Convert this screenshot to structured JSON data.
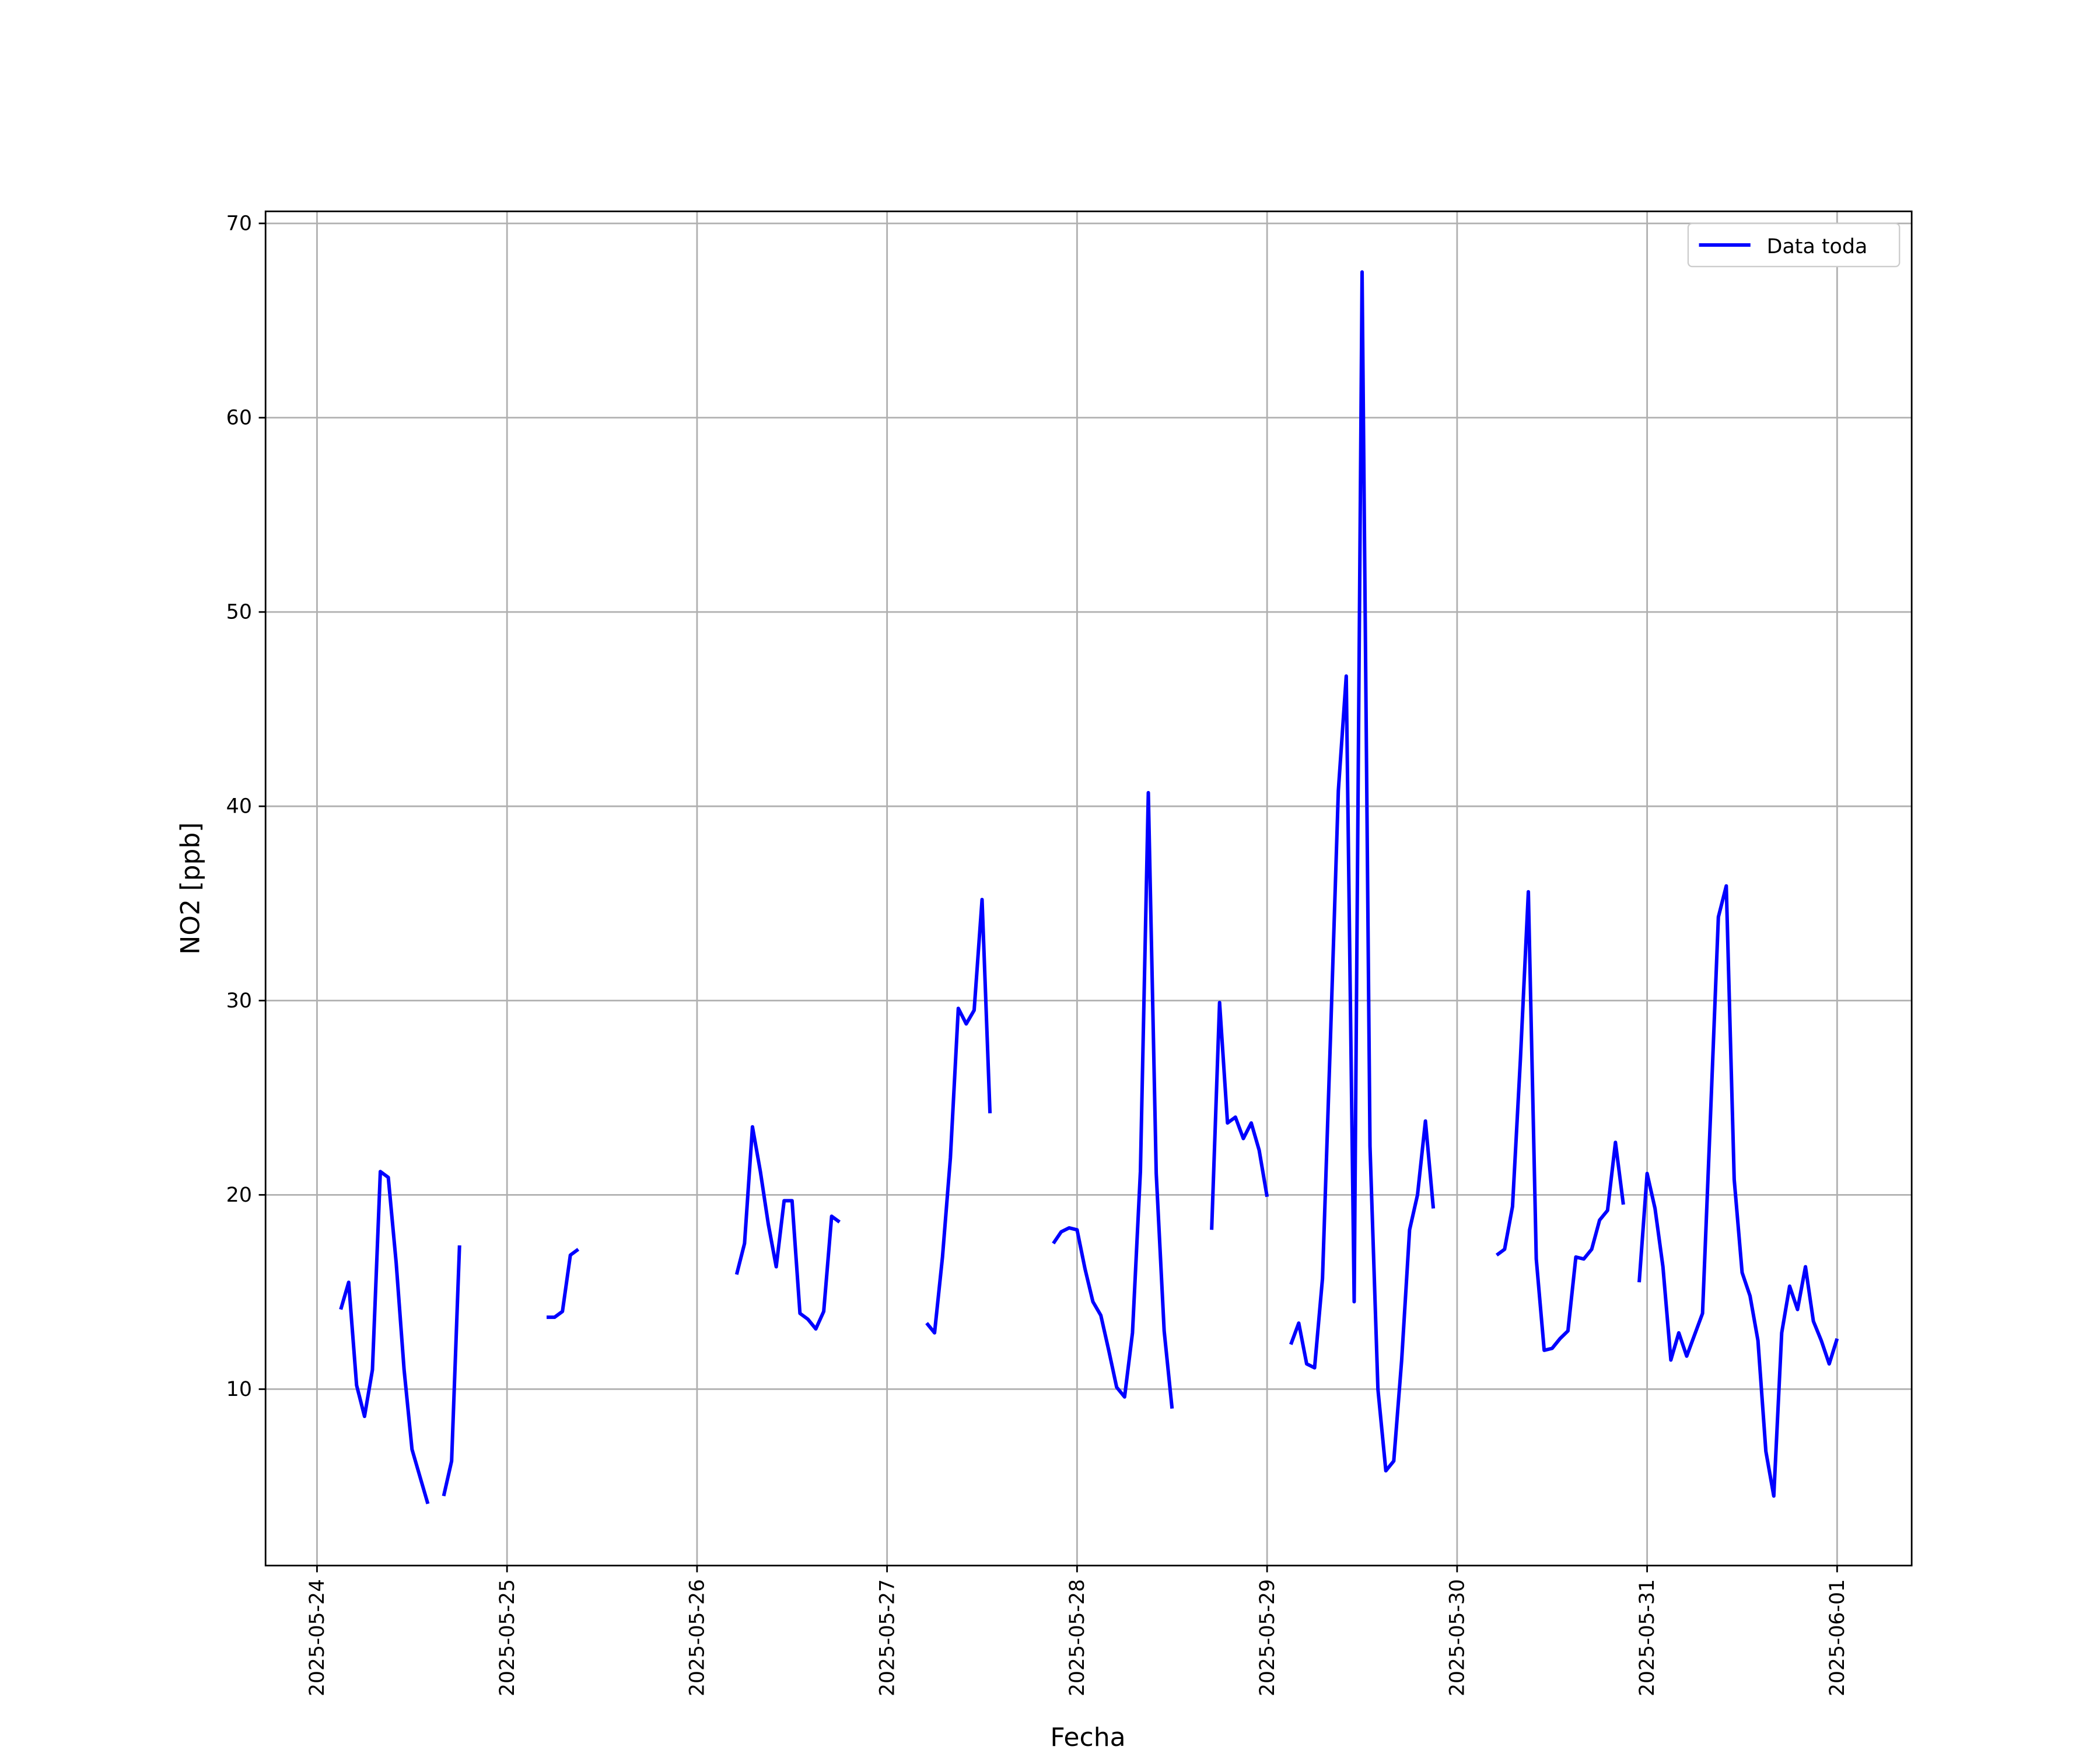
{
  "chart_data": {
    "type": "line",
    "x_label": "Fecha",
    "y_label": "NO2 [ppb]",
    "xlim": [
      "2025-05-23T17:30",
      "2025-06-01T09:25"
    ],
    "ylim": [
      0.92,
      70.62
    ],
    "xticks": [
      "2025-05-24",
      "2025-05-25",
      "2025-05-26",
      "2025-05-27",
      "2025-05-28",
      "2025-05-29",
      "2025-05-30",
      "2025-05-31",
      "2025-06-01"
    ],
    "yticks": [
      10,
      20,
      30,
      40,
      50,
      60,
      70
    ],
    "grid": true,
    "legend": "upper right",
    "x": [
      "2025-05-24T03:00",
      "2025-05-24T04:00",
      "2025-05-24T05:00",
      "2025-05-24T06:00",
      "2025-05-24T07:00",
      "2025-05-24T08:00",
      "2025-05-24T09:00",
      "2025-05-24T10:00",
      "2025-05-24T11:00",
      "2025-05-24T12:00",
      "2025-05-24T13:00",
      "2025-05-24T14:00",
      "2025-05-24T15:00",
      "2025-05-24T16:00",
      "2025-05-24T17:00",
      "2025-05-24T18:00",
      "2025-05-24T19:00",
      "2025-05-25T05:00",
      "2025-05-25T06:00",
      "2025-05-25T07:00",
      "2025-05-25T08:00",
      "2025-05-25T09:00",
      "2025-05-25T10:00",
      "2025-05-26T05:00",
      "2025-05-26T06:00",
      "2025-05-26T07:00",
      "2025-05-26T08:00",
      "2025-05-26T09:00",
      "2025-05-26T10:00",
      "2025-05-26T11:00",
      "2025-05-26T12:00",
      "2025-05-26T13:00",
      "2025-05-26T14:00",
      "2025-05-26T15:00",
      "2025-05-26T16:00",
      "2025-05-26T17:00",
      "2025-05-26T18:00",
      "2025-05-26T19:00",
      "2025-05-27T05:00",
      "2025-05-27T06:00",
      "2025-05-27T07:00",
      "2025-05-27T08:00",
      "2025-05-27T09:00",
      "2025-05-27T10:00",
      "2025-05-27T11:00",
      "2025-05-27T12:00",
      "2025-05-27T13:00",
      "2025-05-27T14:00",
      "2025-05-27T21:00",
      "2025-05-27T22:00",
      "2025-05-27T23:00",
      "2025-05-28T00:00",
      "2025-05-28T01:00",
      "2025-05-28T02:00",
      "2025-05-28T03:00",
      "2025-05-28T04:00",
      "2025-05-28T05:00",
      "2025-05-28T06:00",
      "2025-05-28T07:00",
      "2025-05-28T08:00",
      "2025-05-28T09:00",
      "2025-05-28T10:00",
      "2025-05-28T11:00",
      "2025-05-28T12:00",
      "2025-05-28T13:00",
      "2025-05-28T17:00",
      "2025-05-28T18:00",
      "2025-05-28T19:00",
      "2025-05-28T20:00",
      "2025-05-28T21:00",
      "2025-05-28T22:00",
      "2025-05-28T23:00",
      "2025-05-29T00:00",
      "2025-05-29T01:00",
      "2025-05-29T03:00",
      "2025-05-29T04:00",
      "2025-05-29T05:00",
      "2025-05-29T06:00",
      "2025-05-29T07:00",
      "2025-05-29T08:00",
      "2025-05-29T09:00",
      "2025-05-29T10:00",
      "2025-05-29T11:00",
      "2025-05-29T12:00",
      "2025-05-29T13:00",
      "2025-05-29T14:00",
      "2025-05-29T15:00",
      "2025-05-29T16:00",
      "2025-05-29T17:00",
      "2025-05-29T18:00",
      "2025-05-29T19:00",
      "2025-05-29T20:00",
      "2025-05-29T21:00",
      "2025-05-29T22:00",
      "2025-05-30T05:00",
      "2025-05-30T06:00",
      "2025-05-30T07:00",
      "2025-05-30T08:00",
      "2025-05-30T09:00",
      "2025-05-30T10:00",
      "2025-05-30T11:00",
      "2025-05-30T12:00",
      "2025-05-30T13:00",
      "2025-05-30T14:00",
      "2025-05-30T15:00",
      "2025-05-30T16:00",
      "2025-05-30T17:00",
      "2025-05-30T18:00",
      "2025-05-30T19:00",
      "2025-05-30T20:00",
      "2025-05-30T21:00",
      "2025-05-30T22:00",
      "2025-05-30T23:00",
      "2025-05-31T00:00",
      "2025-05-31T01:00",
      "2025-05-31T02:00",
      "2025-05-31T03:00",
      "2025-05-31T04:00",
      "2025-05-31T05:00",
      "2025-05-31T06:00",
      "2025-05-31T07:00",
      "2025-05-31T08:00",
      "2025-05-31T09:00",
      "2025-05-31T10:00",
      "2025-05-31T11:00",
      "2025-05-31T12:00",
      "2025-05-31T13:00",
      "2025-05-31T14:00",
      "2025-05-31T15:00",
      "2025-05-31T16:00",
      "2025-05-31T17:00",
      "2025-05-31T18:00",
      "2025-05-31T19:00",
      "2025-05-31T20:00",
      "2025-05-31T21:00",
      "2025-05-31T22:00",
      "2025-05-31T23:00",
      "2025-06-01T00:00"
    ],
    "series": [
      {
        "name": "Data toda",
        "color": "#0000ff",
        "values": [
          14.1,
          15.5,
          10.2,
          8.6,
          11.0,
          21.2,
          20.9,
          16.5,
          11.0,
          6.9,
          5.5,
          4.1,
          null,
          4.5,
          6.3,
          17.4,
          null,
          13.7,
          13.7,
          14.0,
          16.9,
          17.2,
          null,
          15.9,
          17.5,
          23.5,
          21.2,
          18.5,
          16.3,
          19.7,
          19.7,
          13.9,
          13.6,
          13.1,
          14.0,
          18.9,
          18.6,
          null,
          13.4,
          12.9,
          16.8,
          21.9,
          29.6,
          28.8,
          29.5,
          35.2,
          24.2,
          null,
          17.5,
          18.1,
          18.3,
          18.2,
          16.2,
          14.5,
          13.8,
          12.0,
          10.1,
          9.6,
          12.9,
          21.2,
          40.7,
          21.1,
          13.0,
          9.0,
          null,
          18.2,
          29.9,
          23.7,
          24.0,
          22.9,
          23.7,
          22.3,
          19.9,
          null,
          12.3,
          13.4,
          11.3,
          11.1,
          15.7,
          28.0,
          40.8,
          46.7,
          14.5,
          67.5,
          22.5,
          10.0,
          5.8,
          6.3,
          11.5,
          18.2,
          20.0,
          23.8,
          19.3,
          null,
          16.9,
          17.2,
          19.4,
          27.0,
          35.6,
          16.7,
          12.0,
          12.1,
          12.6,
          13.0,
          16.8,
          16.7,
          17.2,
          18.7,
          19.2,
          22.7,
          19.5,
          null,
          15.5,
          21.1,
          19.3,
          16.3,
          11.5,
          12.9,
          11.7,
          12.8,
          13.9,
          24.0,
          34.3,
          35.9,
          20.8,
          16.0,
          14.8,
          12.5,
          6.8,
          4.5,
          12.9,
          15.3,
          14.1,
          16.3,
          13.5,
          12.5,
          11.3,
          12.6
        ]
      }
    ]
  }
}
